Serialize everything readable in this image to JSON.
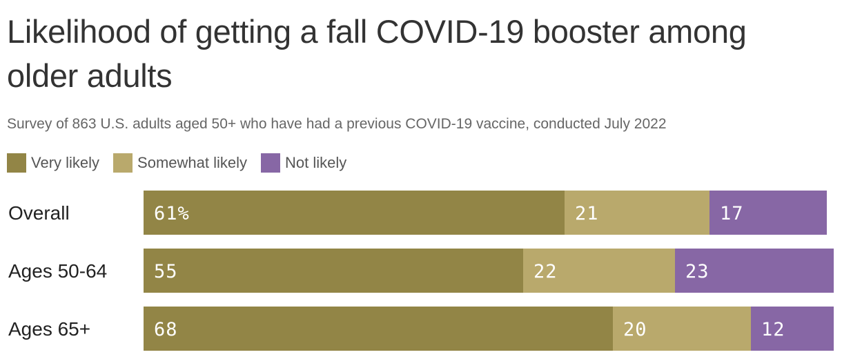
{
  "chart_data": {
    "type": "bar",
    "orientation": "horizontal",
    "stacked": true,
    "title": "Likelihood of getting a fall COVID-19 booster among older adults",
    "subtitle": "Survey of 863 U.S. adults aged 50+ who have had a previous COVID-19 vaccine, conducted July 2022",
    "categories": [
      "Overall",
      "Ages 50-64",
      "Ages 65+"
    ],
    "series": [
      {
        "name": "Very likely",
        "color": "#928546",
        "values": [
          61,
          55,
          68
        ],
        "labels": [
          "61%",
          "55",
          "68"
        ]
      },
      {
        "name": "Somewhat likely",
        "color": "#b9a96c",
        "values": [
          21,
          22,
          20
        ],
        "labels": [
          "21",
          "22",
          "20"
        ]
      },
      {
        "name": "Not likely",
        "color": "#8767a5",
        "values": [
          17,
          23,
          12
        ],
        "labels": [
          "17",
          "23",
          "12"
        ]
      }
    ],
    "xlim": [
      0,
      100
    ],
    "legend_position": "top-left",
    "grid": false
  }
}
